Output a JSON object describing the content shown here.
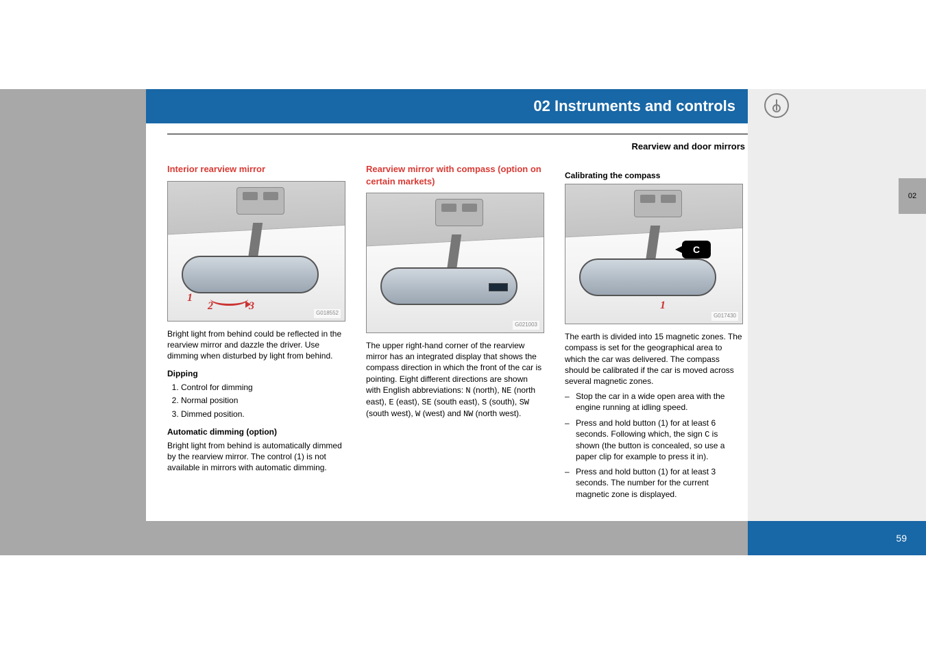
{
  "page": {
    "chapter_title": "02 Instruments and controls",
    "section_title": "Rearview and door mirrors",
    "page_number": "59",
    "side_tab": "02"
  },
  "colors": {
    "brand_blue": "#1867a6",
    "heading_red": "#d83a34",
    "sidebar_grey": "#a8a8a8",
    "light_grey": "#ededed"
  },
  "col1": {
    "heading": "Interior rearview mirror",
    "image_code": "G018552",
    "intro": "Bright light from behind could be reflected in the rearview mirror and dazzle the driver. Use dimming when disturbed by light from behind.",
    "dipping_heading": "Dipping",
    "dipping_items": [
      "Control for dimming",
      "Normal position",
      "Dimmed position."
    ],
    "auto_heading": "Automatic dimming (option)",
    "auto_text": "Bright light from behind is automatically dimmed by the rearview mirror. The control (1) is not available in mirrors with automatic dimming."
  },
  "col2": {
    "heading": "Rearview mirror with compass (option on certain markets)",
    "image_code": "G021003",
    "text_part1": "The upper right-hand corner of the rearview mirror has an integrated display that shows the compass direction in which the front of the car is pointing. Eight different directions are shown with English abbreviations: ",
    "dir_N": "N",
    "dir_N_label": " (north), ",
    "dir_NE": "NE",
    "dir_NE_label": " (north east), ",
    "dir_E": "E",
    "dir_E_label": " (east), ",
    "dir_SE": "SE",
    "dir_SE_label": " (south east), ",
    "dir_S": "S",
    "dir_S_label": " (south), ",
    "dir_SW": "SW",
    "dir_SW_label": " (south west), ",
    "dir_W": "W",
    "dir_W_label": " (west) and ",
    "dir_NW": "NW",
    "dir_NW_label": " (north west)."
  },
  "col3": {
    "heading": "Calibrating the compass",
    "image_code": "G017430",
    "badge": "C",
    "intro": "The earth is divided into 15 magnetic zones. The compass is set for the geographical area to which the car was delivered. The compass should be calibrated if the car is moved across several magnetic zones.",
    "step1": "Stop the car in a wide open area with the engine running at idling speed.",
    "step2a": "Press and hold button (1) for at least 6 seconds. Following which, the sign ",
    "step2_sign": "C",
    "step2b": " is shown (the button is concealed, so use a paper clip for example to press it in).",
    "step3": "Press and hold button (1) for at least 3 seconds. The number for the current magnetic zone is displayed."
  }
}
